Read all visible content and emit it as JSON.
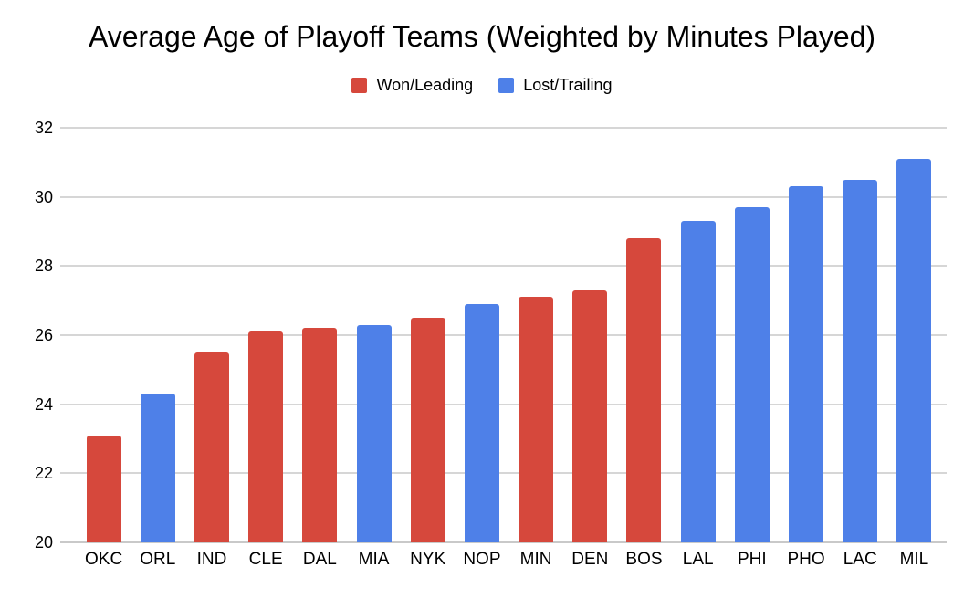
{
  "chart_data": {
    "type": "bar",
    "title": "Average Age of Playoff Teams (Weighted by Minutes Played)",
    "categories": [
      "OKC",
      "ORL",
      "IND",
      "CLE",
      "DAL",
      "MIA",
      "NYK",
      "NOP",
      "MIN",
      "DEN",
      "BOS",
      "LAL",
      "PHI",
      "PHO",
      "LAC",
      "MIL"
    ],
    "values": [
      23.1,
      24.3,
      25.5,
      26.1,
      26.2,
      26.3,
      26.5,
      26.9,
      27.1,
      27.3,
      28.8,
      29.3,
      29.7,
      30.3,
      30.5,
      31.1
    ],
    "groups": [
      "won",
      "lost",
      "won",
      "won",
      "won",
      "lost",
      "won",
      "lost",
      "won",
      "won",
      "won",
      "lost",
      "lost",
      "lost",
      "lost",
      "lost"
    ],
    "series_legend": [
      {
        "key": "won",
        "label": "Won/Leading",
        "color": "#d6483c"
      },
      {
        "key": "lost",
        "label": "Lost/Trailing",
        "color": "#4e80e8"
      }
    ],
    "xlabel": "",
    "ylabel": "",
    "ylim": [
      20,
      32
    ],
    "yticks": [
      20,
      22,
      24,
      26,
      28,
      30,
      32
    ],
    "grid": true,
    "legend_position": "top",
    "colors": {
      "gridline": "#d6d6d6",
      "baseline": "#c9c9c9",
      "text": "#000000",
      "background": "#ffffff"
    }
  }
}
